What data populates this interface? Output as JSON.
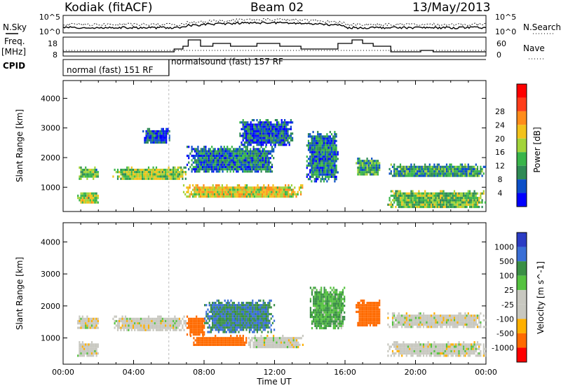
{
  "header": {
    "station": "Kodiak (fitACF)",
    "beam": "Beam 02",
    "date": "13/May/2013"
  },
  "top_panels": {
    "nsky_label": "N.Sky",
    "nsky_ticks": [
      "10^5",
      "10^0"
    ],
    "nsearch_label": "N.Search",
    "nsearch_ticks": [
      "10^5",
      "10^0"
    ],
    "freq_label": "Freq.",
    "freq_unit": "[MHz]",
    "freq_ticks": [
      "18",
      "8"
    ],
    "nave_label": "Nave",
    "nave_ticks": [
      "60",
      "0"
    ],
    "cpid_label": "CPID",
    "cpid_segments": [
      {
        "label": "normal (fast) 151 RF",
        "start_hour": 0,
        "end_hour": 6.0
      },
      {
        "label": "normalsound (fast) 157 RF",
        "start_hour": 6.0,
        "end_hour": 24
      }
    ]
  },
  "colors": {
    "power_scale": [
      "#0000ff",
      "#0b4fc8",
      "#2f8a55",
      "#39b54a",
      "#a2d43a",
      "#f2c21b",
      "#ff8c1a",
      "#ff3d1a",
      "#ff0000"
    ],
    "velocity_scale": [
      "#2b3cc4",
      "#3a6fd6",
      "#3a8f45",
      "#55c240",
      "#c8c8c0",
      "#c8c8c0",
      "#ffb000",
      "#ff6a00",
      "#ff0000"
    ]
  },
  "chart_data": [
    {
      "type": "heatmap",
      "name": "power",
      "ylabel": "Slant Range [km]",
      "yticks": [
        1000,
        2000,
        3000,
        4000
      ],
      "ylim": [
        180,
        4600
      ],
      "xlim": [
        0,
        24
      ],
      "colorbar_label": "Power [dB]",
      "colorbar_ticks": [
        4,
        8,
        12,
        16,
        20,
        24,
        28
      ],
      "clim": [
        0,
        32
      ],
      "regions": [
        {
          "x": [
            0.8,
            2.0
          ],
          "y": [
            1300,
            1700
          ],
          "v": 14
        },
        {
          "x": [
            0.8,
            2.0
          ],
          "y": [
            450,
            900
          ],
          "v": 18
        },
        {
          "x": [
            2.8,
            7.0
          ],
          "y": [
            1250,
            1700
          ],
          "v": 17
        },
        {
          "x": [
            6.8,
            13.6
          ],
          "y": [
            650,
            1100
          ],
          "v": 21
        },
        {
          "x": [
            7.0,
            12.0
          ],
          "y": [
            1500,
            2400
          ],
          "v": 8
        },
        {
          "x": [
            10.0,
            13.0
          ],
          "y": [
            2400,
            3300
          ],
          "v": 6
        },
        {
          "x": [
            13.8,
            15.6
          ],
          "y": [
            1200,
            2900
          ],
          "v": 9
        },
        {
          "x": [
            16.6,
            18.0
          ],
          "y": [
            1400,
            2000
          ],
          "v": 12
        },
        {
          "x": [
            18.4,
            24.0
          ],
          "y": [
            1350,
            1800
          ],
          "v": 11
        },
        {
          "x": [
            18.4,
            24.0
          ],
          "y": [
            300,
            900
          ],
          "v": 15
        },
        {
          "x": [
            4.5,
            6.0
          ],
          "y": [
            2500,
            3000
          ],
          "v": 6
        }
      ]
    },
    {
      "type": "heatmap",
      "name": "velocity",
      "xlabel": "Time UT",
      "ylabel": "Slant Range [km]",
      "xticks": [
        "00:00",
        "04:00",
        "08:00",
        "12:00",
        "16:00",
        "20:00",
        "00:00"
      ],
      "yticks": [
        1000,
        2000,
        3000,
        4000
      ],
      "ylim": [
        180,
        4600
      ],
      "xlim": [
        0,
        24
      ],
      "colorbar_label": "Velocity [m s^-1]",
      "colorbar_ticks": [
        "1000",
        "500",
        "100",
        "25",
        "-25",
        "-100",
        "-500",
        "-1000"
      ],
      "regions": [
        {
          "x": [
            0.8,
            2.0
          ],
          "y": [
            1300,
            1700
          ],
          "v": 0
        },
        {
          "x": [
            0.8,
            2.0
          ],
          "y": [
            450,
            900
          ],
          "v": 0
        },
        {
          "x": [
            2.8,
            7.0
          ],
          "y": [
            1250,
            1700
          ],
          "v": 0
        },
        {
          "x": [
            7.2,
            10.5
          ],
          "y": [
            750,
            1100
          ],
          "v": -150
        },
        {
          "x": [
            7.0,
            8.0
          ],
          "y": [
            1100,
            1700
          ],
          "v": -300
        },
        {
          "x": [
            8.0,
            12.0
          ],
          "y": [
            1200,
            2200
          ],
          "v": 100
        },
        {
          "x": [
            10.5,
            13.6
          ],
          "y": [
            700,
            1100
          ],
          "v": 0
        },
        {
          "x": [
            14.0,
            16.0
          ],
          "y": [
            1300,
            2600
          ],
          "v": 50
        },
        {
          "x": [
            16.6,
            18.0
          ],
          "y": [
            1400,
            2200
          ],
          "v": -200
        },
        {
          "x": [
            18.4,
            24.0
          ],
          "y": [
            1350,
            1800
          ],
          "v": 0
        },
        {
          "x": [
            18.4,
            24.0
          ],
          "y": [
            450,
            900
          ],
          "v": 0
        }
      ]
    }
  ]
}
